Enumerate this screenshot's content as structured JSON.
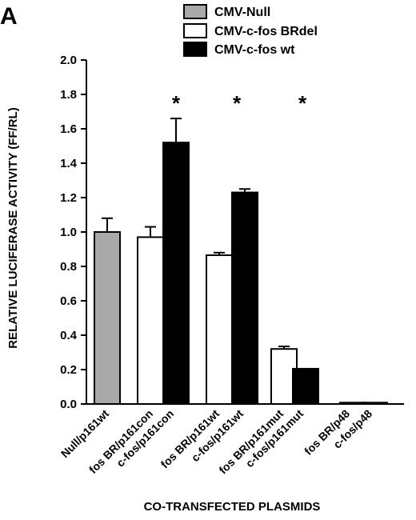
{
  "panel_label": "A",
  "chart_data": {
    "type": "bar",
    "xlabel": "CO-TRANSFECTED PLASMIDS",
    "ylabel": "RELATIVE LUCIFERASE ACTIVITY (FF/RL)",
    "ylim": [
      0,
      2.0
    ],
    "yticks": [
      "0.0",
      "0.2",
      "0.4",
      "0.6",
      "0.8",
      "1.0",
      "1.2",
      "1.4",
      "1.6",
      "1.8",
      "2.0"
    ],
    "grid": false,
    "legend_position": "top",
    "series": [
      {
        "name": "CMV-Null",
        "color": "#a9a9a9"
      },
      {
        "name": "CMV-c-fos BRdel",
        "color": "#ffffff"
      },
      {
        "name": "CMV-c-fos wt",
        "color": "#000000"
      }
    ],
    "bars": [
      {
        "label": "Null/p161wt",
        "series": 0,
        "value": 1.0,
        "error": 0.08
      },
      {
        "label": "fos BR/p161con",
        "series": 1,
        "value": 0.97,
        "error": 0.06
      },
      {
        "label": "c-fos/p161con",
        "series": 2,
        "value": 1.52,
        "error": 0.14
      },
      {
        "label": "fos BR/p161wt",
        "series": 1,
        "value": 0.865,
        "error": 0.015
      },
      {
        "label": "c-fos/p161wt",
        "series": 2,
        "value": 1.23,
        "error": 0.02
      },
      {
        "label": "fos BR/p161mut",
        "series": 1,
        "value": 0.32,
        "error": 0.015
      },
      {
        "label": "c-fos/p161mut",
        "series": 2,
        "value": 0.205,
        "error": 0.0
      },
      {
        "label": "fos BR/p48",
        "series": 1,
        "value": 0.008,
        "error": 0.0
      },
      {
        "label": "c-fos/p48",
        "series": 2,
        "value": 0.008,
        "error": 0.0
      }
    ],
    "significance": [
      {
        "group": "p161con",
        "text": "*"
      },
      {
        "group": "p161wt",
        "text": "*"
      },
      {
        "group": "p161mut",
        "text": "*"
      }
    ]
  }
}
